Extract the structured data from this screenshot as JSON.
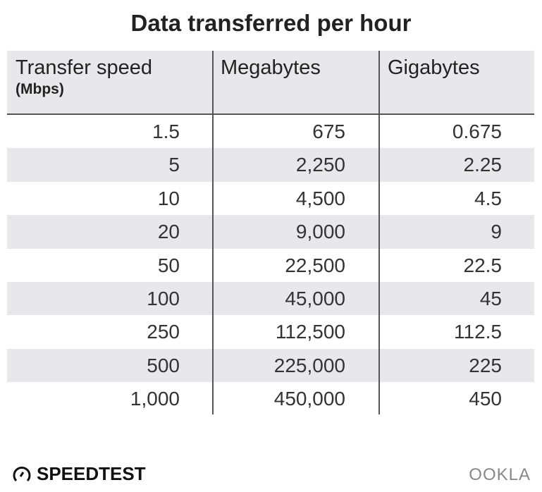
{
  "title": "Data transferred per hour",
  "chart_data": {
    "type": "table",
    "title": "Data transferred per hour",
    "columns": [
      {
        "label": "Transfer speed",
        "sublabel": "(Mbps)"
      },
      {
        "label": "Megabytes"
      },
      {
        "label": "Gigabytes"
      }
    ],
    "rows": [
      [
        "1.5",
        "675",
        "0.675"
      ],
      [
        "5",
        "2,250",
        "2.25"
      ],
      [
        "10",
        "4,500",
        "4.5"
      ],
      [
        "20",
        "9,000",
        "9"
      ],
      [
        "50",
        "22,500",
        "22.5"
      ],
      [
        "100",
        "45,000",
        "45"
      ],
      [
        "250",
        "112,500",
        "112.5"
      ],
      [
        "500",
        "225,000",
        "225"
      ],
      [
        "1,000",
        "450,000",
        "450"
      ]
    ],
    "stripe_color": "#e8e8ec"
  },
  "footer": {
    "left_logo": "SPEEDTEST",
    "right_logo": "OOKLA"
  }
}
